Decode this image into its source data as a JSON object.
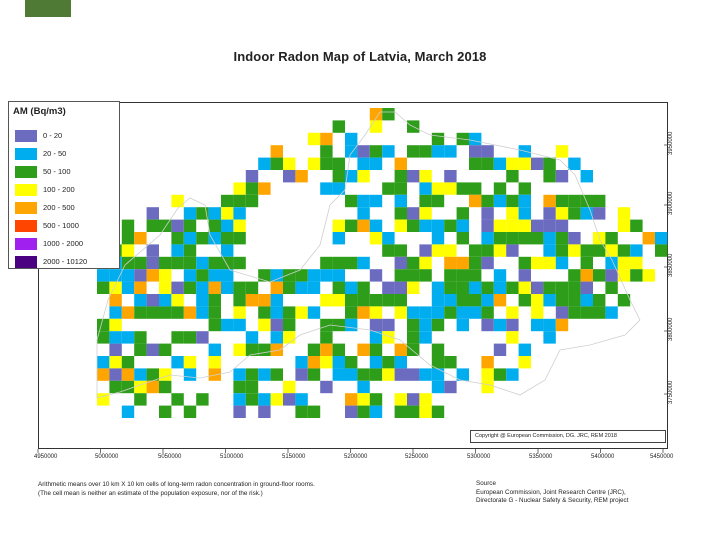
{
  "title": "Indoor Radon Map of Latvia, March 2018",
  "legend": {
    "title": "AM (Bq/m3)",
    "classes": [
      {
        "label": "0 - 20",
        "color": "#6b6bbf"
      },
      {
        "label": "20 - 50",
        "color": "#00aeef"
      },
      {
        "label": "50 - 100",
        "color": "#2e9e1a"
      },
      {
        "label": "100 - 200",
        "color": "#ffff00"
      },
      {
        "label": "200 - 500",
        "color": "#ffa500"
      },
      {
        "label": "500 - 1000",
        "color": "#ff4500"
      },
      {
        "label": "1000 - 2000",
        "color": "#a020f0"
      },
      {
        "label": "2000 - 10120",
        "color": "#4b0082"
      }
    ]
  },
  "axes": {
    "x_ticks": [
      "4950000",
      "5000000",
      "5050000",
      "5100000",
      "5150000",
      "5200000",
      "5250000",
      "5300000",
      "5350000",
      "5400000",
      "5450000"
    ],
    "y_ticks": [
      "3950000",
      "3900000",
      "3850000",
      "3800000",
      "3750000"
    ]
  },
  "copyright": "Copyright @ European Commission, DG. JRC, REM 2018",
  "note": {
    "line1": "Arithmetic means over 10 km X 10 km cells of long-term radon concentration in ground-floor rooms.",
    "line2": "(The cell mean is neither an estimate of the population exposure, nor of the risk.)"
  },
  "source": {
    "heading": "Source",
    "line1": "European Commission, Joint Research Centre (JRC),",
    "line2": "Directorate G - Nuclear Safety & Security, REM project"
  }
}
